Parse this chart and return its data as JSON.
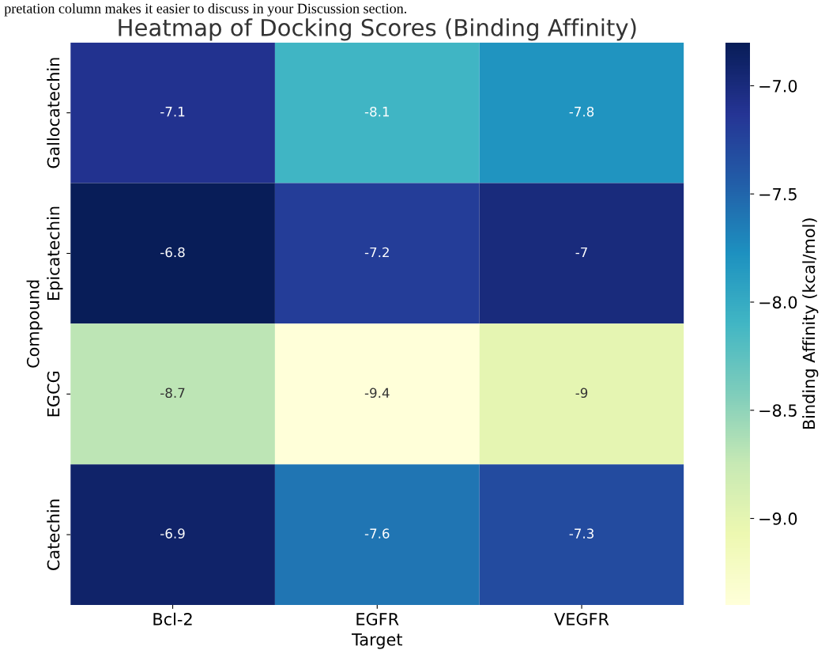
{
  "chart_data": {
    "type": "heatmap",
    "title": "Heatmap of Docking Scores (Binding Affinity)",
    "xlabel": "Target",
    "ylabel": "Compound",
    "clabel": "Binding Affinity (kcal/mol)",
    "annotations": [
      "pretation column makes it easier to discuss in your Discussion section."
    ],
    "categories": [
      "Bcl-2",
      "EGFR",
      "VEGFR"
    ],
    "y_categories": [
      "Gallocatechin",
      "Epicatechin",
      "EGCG",
      "Catechin"
    ],
    "cells": [
      [
        -7.1,
        -8.1,
        -7.8
      ],
      [
        -6.8,
        -7.2,
        -7
      ],
      [
        -8.7,
        -9.4,
        -9
      ],
      [
        -6.9,
        -7.6,
        -7.3
      ]
    ],
    "data_labels": true,
    "clim": [
      -9.4,
      -6.8
    ],
    "cticks": [
      {
        "value": -7.0,
        "label": "−7.0"
      },
      {
        "value": -7.5,
        "label": "−7.5"
      },
      {
        "value": -8.0,
        "label": "−8.0"
      },
      {
        "value": -8.5,
        "label": "−8.5"
      },
      {
        "value": -9.0,
        "label": "−9.0"
      }
    ]
  }
}
